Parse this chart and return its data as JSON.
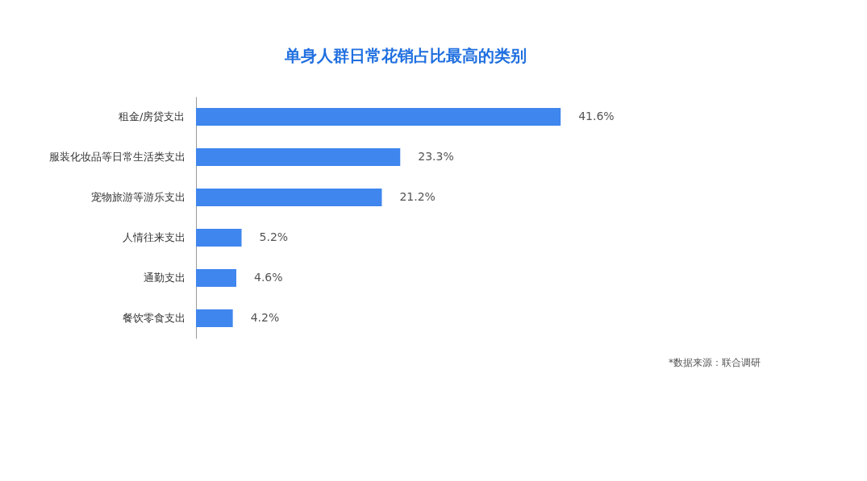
{
  "chart_data": {
    "type": "bar",
    "orientation": "horizontal",
    "title": "单身人群日常花销占比最高的类别",
    "categories": [
      "租金/房贷支出",
      "服装化妆品等日常生活类支出",
      "宠物旅游等游乐支出",
      "人情往来支出",
      "通勤支出",
      "餐饮零食支出"
    ],
    "values": [
      41.6,
      23.3,
      21.2,
      5.2,
      4.6,
      4.2
    ],
    "value_labels": [
      "41.6%",
      "23.3%",
      "21.2%",
      "5.2%",
      "4.6%",
      "4.2%"
    ],
    "color": "#3f86ee",
    "annotations": [
      "*数据来源：联合调研"
    ]
  }
}
